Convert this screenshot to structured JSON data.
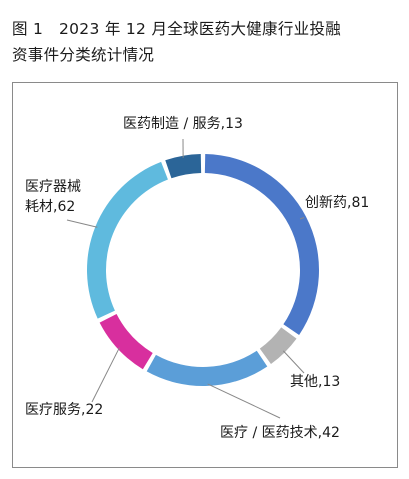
{
  "figure_title_line1": "图 1　2023 年 12 月全球医药大健康行业投融",
  "figure_title_line2": "资事件分类统计情况",
  "chart_data": {
    "type": "pie",
    "variant": "donut",
    "title": "图 1　2023 年 12 月全球医药大健康行业投融资事件分类统计情况",
    "slices": [
      {
        "name": "创新药",
        "value": 81,
        "label_lines": [
          "创新药,81"
        ],
        "color": "#4b78c9"
      },
      {
        "name": "其他",
        "value": 13,
        "label_lines": [
          "其他,13"
        ],
        "color": "#b3b3b3"
      },
      {
        "name": "医疗 / 医药技术",
        "value": 42,
        "label_lines": [
          "医疗 / 医药技术,42"
        ],
        "color": "#5b9ed8"
      },
      {
        "name": "医疗服务",
        "value": 22,
        "label_lines": [
          "医疗服务,22"
        ],
        "color": "#d82f9e"
      },
      {
        "name": "医疗器械耗材",
        "value": 62,
        "label_lines": [
          "医疗器械",
          "耗材,62"
        ],
        "color": "#5fbade"
      },
      {
        "name": "医药制造 / 服务",
        "value": 13,
        "label_lines": [
          "医药制造 / 服务,13"
        ],
        "color": "#2b6598"
      }
    ]
  }
}
